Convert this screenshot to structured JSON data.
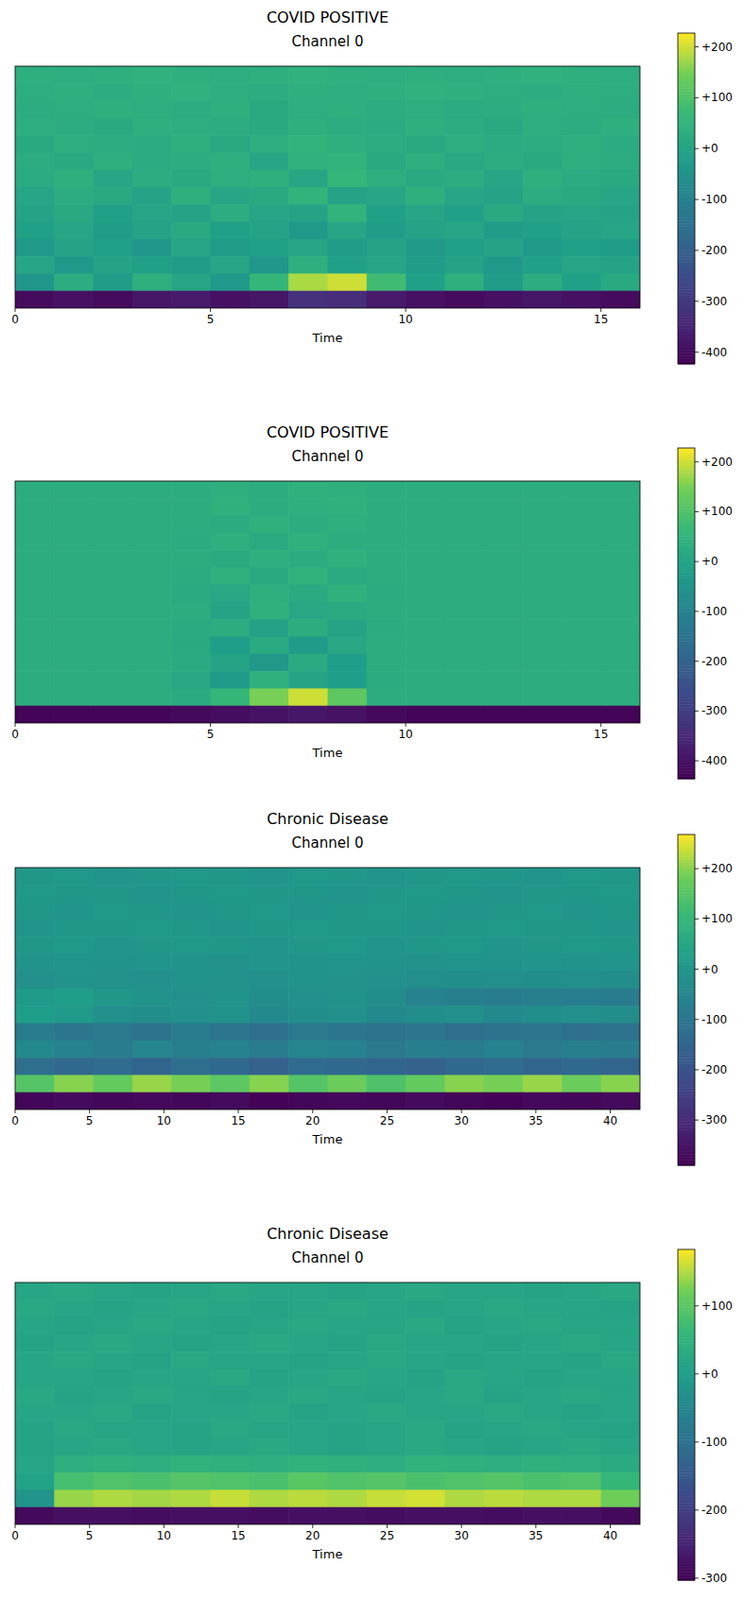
{
  "chart_data": [
    {
      "type": "heatmap",
      "title": "COVID POSITIVE",
      "subtitle": "Channel 0",
      "x_label": "Time",
      "xlim": [
        0,
        16
      ],
      "xticks": [
        0,
        5,
        10,
        15
      ],
      "tick_labels": "x",
      "colorbar_range": [
        -423,
        227
      ],
      "colorbar_ticks": [
        {
          "value": 200,
          "label": "+200"
        },
        {
          "value": 100,
          "label": "+100"
        },
        {
          "value": 0,
          "label": "+0"
        },
        {
          "value": -100,
          "label": "-100"
        },
        {
          "value": -200,
          "label": "-200"
        },
        {
          "value": -300,
          "label": "-300"
        },
        {
          "value": -400,
          "label": "-400"
        }
      ],
      "cells": [
        [
          40,
          35,
          40,
          45,
          40,
          35,
          40,
          45,
          40,
          35,
          40,
          35,
          40,
          45,
          40,
          35
        ],
        [
          35,
          40,
          30,
          40,
          45,
          35,
          30,
          40,
          35,
          40,
          45,
          40,
          35,
          30,
          40,
          35
        ],
        [
          30,
          35,
          40,
          35,
          30,
          40,
          20,
          35,
          40,
          30,
          35,
          25,
          30,
          40,
          35,
          30
        ],
        [
          35,
          30,
          20,
          40,
          35,
          30,
          20,
          40,
          30,
          25,
          40,
          30,
          20,
          35,
          30,
          40
        ],
        [
          20,
          35,
          30,
          25,
          40,
          20,
          35,
          50,
          40,
          30,
          20,
          35,
          25,
          30,
          40,
          25
        ],
        [
          30,
          20,
          40,
          25,
          30,
          40,
          10,
          45,
          50,
          20,
          35,
          15,
          30,
          20,
          35,
          30
        ],
        [
          25,
          40,
          10,
          30,
          20,
          35,
          40,
          10,
          60,
          35,
          20,
          30,
          10,
          40,
          25,
          20
        ],
        [
          10,
          30,
          20,
          0,
          40,
          10,
          20,
          50,
          0,
          10,
          40,
          10,
          0,
          30,
          20,
          10
        ],
        [
          0,
          20,
          -10,
          10,
          0,
          30,
          10,
          0,
          50,
          -10,
          10,
          -10,
          20,
          0,
          10,
          0
        ],
        [
          -10,
          10,
          -20,
          0,
          20,
          -10,
          0,
          -30,
          10,
          -20,
          0,
          10,
          -20,
          -10,
          0,
          10
        ],
        [
          -30,
          0,
          -10,
          -40,
          10,
          -20,
          -10,
          10,
          -20,
          0,
          -30,
          -10,
          0,
          -30,
          -10,
          -20
        ],
        [
          10,
          -30,
          0,
          -10,
          -20,
          10,
          -40,
          40,
          -10,
          10,
          -20,
          0,
          -30,
          -10,
          10,
          0
        ],
        [
          -40,
          30,
          -20,
          40,
          10,
          -30,
          60,
          180,
          200,
          80,
          -10,
          40,
          -20,
          30,
          -10,
          20
        ],
        [
          -400,
          -390,
          -400,
          -380,
          -370,
          -390,
          -380,
          -320,
          -330,
          -370,
          -390,
          -400,
          -390,
          -380,
          -390,
          -400
        ]
      ]
    },
    {
      "type": "heatmap",
      "title": "COVID POSITIVE",
      "subtitle": "Channel 0",
      "x_label": "Time",
      "xlim": [
        0,
        16
      ],
      "xticks": [
        0,
        5,
        10,
        15
      ],
      "tick_labels": "x",
      "colorbar_range": [
        -436,
        228
      ],
      "colorbar_ticks": [
        {
          "value": 200,
          "label": "+200"
        },
        {
          "value": 100,
          "label": "+100"
        },
        {
          "value": 0,
          "label": "+0"
        },
        {
          "value": -100,
          "label": "-100"
        },
        {
          "value": -200,
          "label": "-200"
        },
        {
          "value": -300,
          "label": "-300"
        },
        {
          "value": -400,
          "label": "-400"
        }
      ],
      "cells": [
        [
          30,
          30,
          30,
          30,
          30,
          35,
          30,
          40,
          35,
          30,
          30,
          30,
          30,
          30,
          30,
          30
        ],
        [
          30,
          30,
          30,
          30,
          30,
          40,
          30,
          35,
          40,
          30,
          30,
          30,
          30,
          30,
          30,
          30
        ],
        [
          30,
          30,
          30,
          30,
          30,
          25,
          40,
          30,
          35,
          30,
          30,
          30,
          30,
          30,
          30,
          30
        ],
        [
          30,
          30,
          30,
          30,
          25,
          35,
          20,
          40,
          30,
          30,
          30,
          30,
          30,
          30,
          30,
          30
        ],
        [
          30,
          30,
          30,
          30,
          30,
          20,
          35,
          25,
          40,
          30,
          30,
          30,
          30,
          30,
          30,
          30
        ],
        [
          30,
          30,
          30,
          30,
          25,
          40,
          15,
          45,
          20,
          30,
          30,
          30,
          30,
          30,
          30,
          30
        ],
        [
          30,
          30,
          30,
          30,
          20,
          10,
          35,
          20,
          40,
          25,
          30,
          30,
          30,
          30,
          30,
          30
        ],
        [
          30,
          30,
          30,
          30,
          30,
          0,
          40,
          10,
          20,
          30,
          30,
          30,
          30,
          30,
          30,
          30
        ],
        [
          30,
          30,
          30,
          30,
          20,
          30,
          -10,
          30,
          0,
          25,
          30,
          30,
          30,
          30,
          30,
          30
        ],
        [
          30,
          30,
          30,
          30,
          15,
          -20,
          20,
          -30,
          10,
          30,
          30,
          30,
          30,
          30,
          30,
          30
        ],
        [
          30,
          30,
          30,
          30,
          20,
          0,
          -40,
          20,
          -20,
          30,
          30,
          30,
          30,
          30,
          30,
          30
        ],
        [
          30,
          30,
          30,
          30,
          10,
          -30,
          40,
          0,
          -20,
          25,
          30,
          30,
          30,
          30,
          30,
          30
        ],
        [
          30,
          30,
          30,
          30,
          20,
          60,
          150,
          200,
          120,
          30,
          30,
          30,
          30,
          30,
          30,
          30
        ],
        [
          -430,
          -430,
          -430,
          -430,
          -420,
          -410,
          -400,
          -390,
          -400,
          -420,
          -430,
          -430,
          -430,
          -430,
          -430,
          -430
        ]
      ]
    },
    {
      "type": "heatmap",
      "title": "Chronic Disease",
      "subtitle": "Channel 0",
      "x_label": "Time",
      "xlim": [
        0,
        42
      ],
      "xticks": [
        0,
        5,
        10,
        15,
        20,
        25,
        30,
        35,
        40
      ],
      "tick_labels": "x",
      "colorbar_range": [
        -390,
        268
      ],
      "colorbar_ticks": [
        {
          "value": 200,
          "label": "+200"
        },
        {
          "value": 100,
          "label": "+100"
        },
        {
          "value": 0,
          "label": "+0"
        },
        {
          "value": -100,
          "label": "-100"
        },
        {
          "value": -200,
          "label": "-200"
        },
        {
          "value": -300,
          "label": "-300"
        }
      ],
      "cells": [
        [
          0,
          5,
          -5,
          0,
          5,
          0,
          -5,
          5,
          0,
          -5,
          0,
          5,
          0,
          -5,
          5,
          0
        ],
        [
          5,
          0,
          0,
          -5,
          0,
          5,
          0,
          0,
          -5,
          0,
          5,
          0,
          -5,
          0,
          0,
          5
        ],
        [
          0,
          -5,
          5,
          0,
          -5,
          0,
          5,
          -5,
          0,
          5,
          0,
          -5,
          0,
          5,
          -5,
          0
        ],
        [
          -5,
          0,
          0,
          5,
          0,
          -5,
          0,
          5,
          0,
          0,
          -5,
          0,
          5,
          0,
          0,
          -5
        ],
        [
          0,
          5,
          -5,
          0,
          5,
          0,
          -5,
          0,
          5,
          -5,
          0,
          5,
          -5,
          0,
          5,
          0
        ],
        [
          -10,
          -5,
          -10,
          -5,
          -10,
          -15,
          -5,
          -10,
          -5,
          -10,
          -15,
          -5,
          -10,
          -5,
          -10,
          -5
        ],
        [
          -20,
          -10,
          -15,
          -20,
          -10,
          -15,
          -20,
          -10,
          -15,
          -20,
          -25,
          -30,
          -25,
          -30,
          -25,
          -30
        ],
        [
          10,
          20,
          0,
          -10,
          -20,
          -10,
          -30,
          -20,
          -10,
          -30,
          -60,
          -70,
          -80,
          -70,
          -75,
          -80
        ],
        [
          20,
          10,
          -20,
          -30,
          -20,
          -10,
          -40,
          -30,
          -20,
          -40,
          -30,
          -20,
          -40,
          -30,
          -20,
          -30
        ],
        [
          -80,
          -100,
          -90,
          -110,
          -80,
          -100,
          -120,
          -90,
          -100,
          -110,
          -100,
          -120,
          -110,
          -100,
          -120,
          -110
        ],
        [
          -40,
          -60,
          -80,
          -50,
          -70,
          -60,
          -80,
          -50,
          -60,
          -90,
          -70,
          -80,
          -60,
          -90,
          -70,
          -80
        ],
        [
          -120,
          -140,
          -130,
          -150,
          -120,
          -140,
          -160,
          -130,
          -140,
          -150,
          -160,
          -140,
          -130,
          -150,
          -140,
          -150
        ],
        [
          150,
          200,
          170,
          210,
          190,
          160,
          200,
          150,
          180,
          140,
          170,
          200,
          190,
          210,
          180,
          200
        ],
        [
          -380,
          -370,
          -380,
          -375,
          -380,
          -370,
          -385,
          -380,
          -375,
          -380,
          -370,
          -380,
          -385,
          -375,
          -380,
          -370
        ]
      ]
    },
    {
      "type": "heatmap",
      "title": "Chronic Disease",
      "subtitle": "Channel 0",
      "x_label": "Time",
      "xlim": [
        0,
        42
      ],
      "xticks": [
        0,
        5,
        10,
        15,
        20,
        25,
        30,
        35,
        40
      ],
      "tick_labels": "x",
      "colorbar_range": [
        -303,
        183
      ],
      "colorbar_ticks": [
        {
          "value": 100,
          "label": "+100"
        },
        {
          "value": 0,
          "label": "+0"
        },
        {
          "value": -100,
          "label": "-100"
        },
        {
          "value": -200,
          "label": "-200"
        },
        {
          "value": -300,
          "label": "-300"
        }
      ],
      "cells": [
        [
          20,
          25,
          20,
          15,
          20,
          25,
          20,
          20,
          15,
          20,
          25,
          20,
          20,
          15,
          20,
          25
        ],
        [
          25,
          20,
          15,
          20,
          25,
          20,
          15,
          20,
          25,
          20,
          15,
          20,
          25,
          20,
          20,
          15
        ],
        [
          20,
          15,
          20,
          25,
          20,
          15,
          20,
          25,
          20,
          20,
          25,
          15,
          20,
          25,
          20,
          20
        ],
        [
          15,
          20,
          25,
          20,
          15,
          20,
          25,
          20,
          15,
          25,
          20,
          20,
          15,
          20,
          25,
          20
        ],
        [
          20,
          25,
          20,
          15,
          25,
          20,
          20,
          15,
          20,
          25,
          20,
          15,
          20,
          20,
          15,
          25
        ],
        [
          20,
          20,
          15,
          20,
          20,
          25,
          15,
          20,
          25,
          20,
          15,
          25,
          20,
          15,
          20,
          20
        ],
        [
          25,
          15,
          20,
          25,
          20,
          15,
          20,
          25,
          20,
          15,
          20,
          25,
          15,
          20,
          25,
          20
        ],
        [
          20,
          20,
          25,
          15,
          20,
          20,
          25,
          15,
          20,
          25,
          20,
          20,
          25,
          20,
          15,
          20
        ],
        [
          15,
          25,
          20,
          20,
          15,
          25,
          20,
          20,
          15,
          20,
          25,
          15,
          20,
          25,
          20,
          15
        ],
        [
          15,
          20,
          25,
          20,
          15,
          20,
          25,
          20,
          15,
          20,
          25,
          20,
          15,
          20,
          25,
          20
        ],
        [
          20,
          40,
          45,
          40,
          50,
          45,
          40,
          50,
          45,
          40,
          50,
          45,
          40,
          45,
          40,
          30
        ],
        [
          10,
          80,
          90,
          85,
          95,
          90,
          85,
          100,
          90,
          95,
          85,
          90,
          95,
          85,
          90,
          60
        ],
        [
          -20,
          140,
          150,
          145,
          150,
          160,
          150,
          155,
          150,
          160,
          165,
          150,
          155,
          150,
          150,
          120
        ],
        [
          -290,
          -280,
          -280,
          -285,
          -280,
          -280,
          -285,
          -280,
          -280,
          -285,
          -280,
          -280,
          -285,
          -280,
          -280,
          -290
        ]
      ]
    }
  ]
}
